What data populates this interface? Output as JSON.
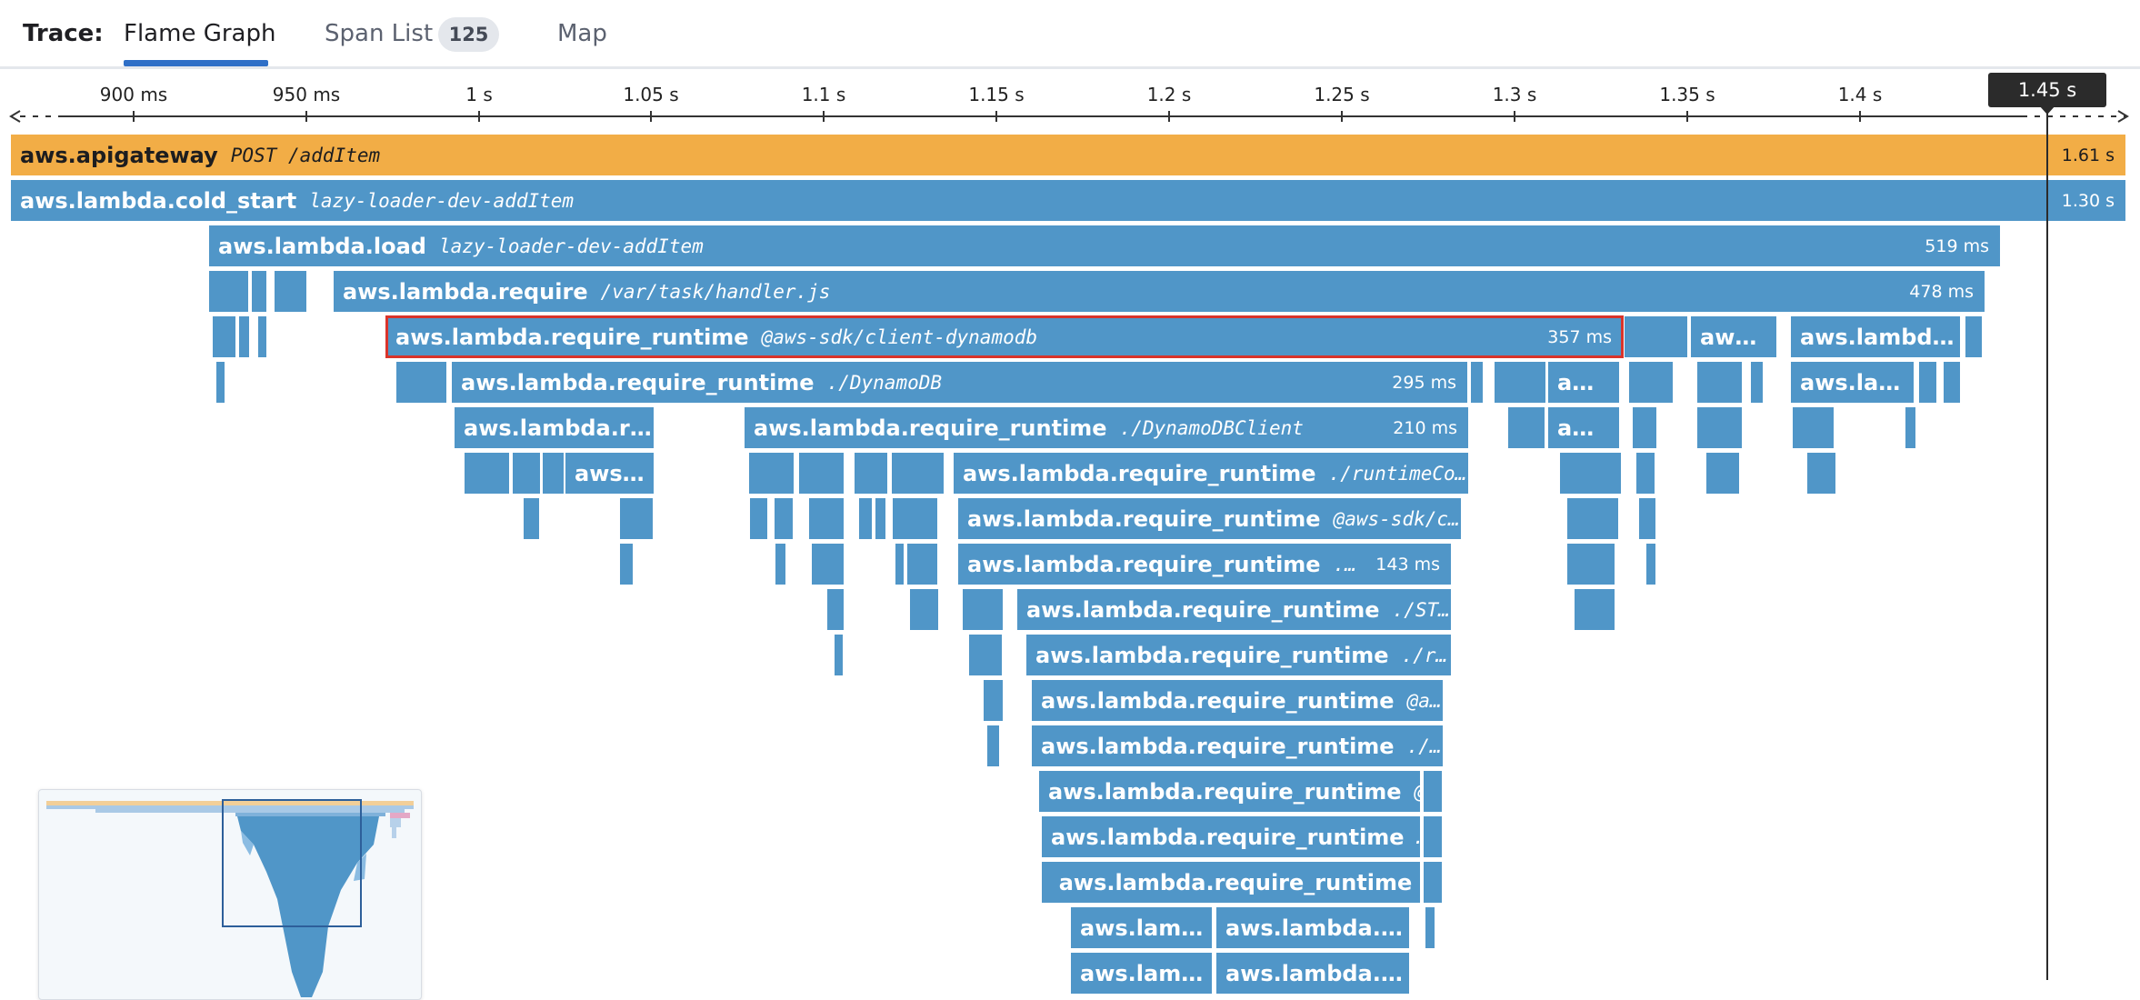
{
  "header": {
    "trace_label": "Trace:",
    "tabs": [
      {
        "label": "Flame Graph",
        "active": true
      },
      {
        "label": "Span List",
        "badge": "125",
        "active": false
      },
      {
        "label": "Map",
        "active": false
      }
    ]
  },
  "axis": {
    "ticks": [
      "900 ms",
      "950 ms",
      "1 s",
      "1.05 s",
      "1.1 s",
      "1.15 s",
      "1.2 s",
      "1.25 s",
      "1.3 s",
      "1.35 s",
      "1.4 s"
    ],
    "cursor_label": "1.45 s"
  },
  "colors": {
    "root_span": "#f2ad46",
    "span": "#5096c8",
    "selected_outline": "#d9342b",
    "active_tab_underline": "#2f6fc7"
  },
  "spans": [
    {
      "name": "aws.apigateway",
      "resource": "POST /addItem",
      "duration": "1.61 s"
    },
    {
      "name": "aws.lambda.cold_start",
      "resource": "lazy-loader-dev-addItem",
      "duration": "1.30 s"
    },
    {
      "name": "aws.lambda.load",
      "resource": "lazy-loader-dev-addItem",
      "duration": "519 ms"
    },
    {
      "name": "aws.lambda.require",
      "resource": "/var/task/handler.js",
      "duration": "478 ms"
    },
    {
      "name": "aws.lambda.require_runtime",
      "resource": "@aws-sdk/client-dynamodb",
      "duration": "357 ms"
    },
    {
      "name": "aws.lambda.require_runtime",
      "resource": "./DynamoDB",
      "duration": "295 ms"
    },
    {
      "name": "aws.lambda.require_runtime",
      "resource": "./DynamoDBClient",
      "duration": "210 ms"
    },
    {
      "name": "aws.lambda.require_runtime",
      "resource": "./runtimeConf…",
      "duration": ""
    },
    {
      "name": "aws.lambda.require_runtime",
      "resource": "@aws-sdk/cl…",
      "duration": ""
    },
    {
      "name": "aws.lambda.require_runtime",
      "resource": "./STS",
      "duration": "143 ms"
    },
    {
      "name": "aws.lambda.require_runtime",
      "resource": "./STSC…",
      "duration": ""
    },
    {
      "name": "aws.lambda.require_runtime",
      "resource": "./run…",
      "duration": ""
    },
    {
      "name": "aws.lambda.require_runtime",
      "resource": "@aws…",
      "duration": ""
    },
    {
      "name": "aws.lambda.require_runtime",
      "resource": "./de…",
      "duration": ""
    },
    {
      "name": "aws.lambda.require_runtime",
      "resource": "@…",
      "duration": ""
    },
    {
      "name": "aws.lambda.require_runtime",
      "resource": "…",
      "duration": ""
    },
    {
      "name": "aws.lambda.require_runtime",
      "resource": "",
      "duration": ""
    },
    {
      "name": "aws.lam…",
      "resource": "",
      "duration": ""
    },
    {
      "name": "aws.lambda.r…",
      "resource": "",
      "duration": ""
    },
    {
      "name": "aws.lam…",
      "resource": "",
      "duration": ""
    },
    {
      "name": "aws.lambda.r…",
      "resource": "",
      "duration": ""
    },
    {
      "name": "aws.lambda.r…",
      "resource": "",
      "duration": ""
    },
    {
      "name": "aws…",
      "resource": "",
      "duration": ""
    },
    {
      "name": "aw…",
      "resource": "",
      "duration": ""
    },
    {
      "name": "aws.lambd…",
      "resource": "",
      "duration": ""
    },
    {
      "name": "a…",
      "resource": "",
      "duration": ""
    },
    {
      "name": "aws.la…",
      "resource": "",
      "duration": ""
    },
    {
      "name": "a…",
      "resource": "",
      "duration": ""
    }
  ]
}
